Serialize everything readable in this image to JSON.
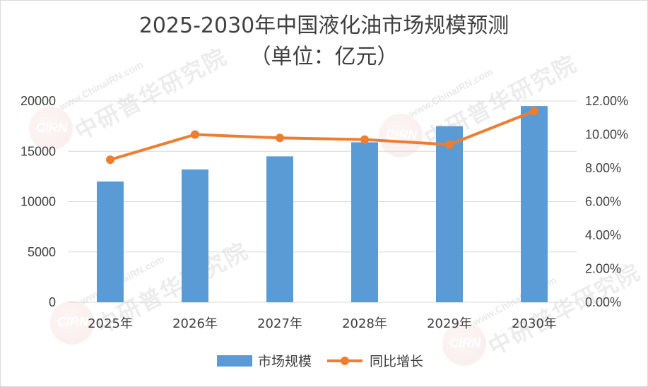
{
  "chart_data": {
    "type": "bar",
    "title": "2025-2030年中国液化油市场规模预测",
    "subtitle": "（单位：亿元）",
    "categories": [
      "2025年",
      "2026年",
      "2027年",
      "2028年",
      "2029年",
      "2030年"
    ],
    "series": [
      {
        "name": "市场规模",
        "type": "bar",
        "axis": "left",
        "color": "#5b9bd5",
        "values": [
          12000,
          13200,
          14500,
          15900,
          17500,
          19500
        ]
      },
      {
        "name": "同比增长",
        "type": "line",
        "axis": "right",
        "color": "#ed7d31",
        "values": [
          8.5,
          10.0,
          9.8,
          9.7,
          9.4,
          11.4
        ]
      }
    ],
    "y_left": {
      "min": 0,
      "max": 20000,
      "ticks": [
        "0",
        "5000",
        "10000",
        "15000",
        "20000"
      ]
    },
    "y_right": {
      "min": 0,
      "max": 12,
      "ticks": [
        "0.00%",
        "2.00%",
        "4.00%",
        "6.00%",
        "8.00%",
        "10.00%",
        "12.00%"
      ]
    },
    "grid": true,
    "legend_position": "bottom"
  },
  "watermark": {
    "logo_text": "CIRN",
    "domain_text": "www.ChinaIRN.com",
    "brand_text": "中研普华研究院"
  }
}
